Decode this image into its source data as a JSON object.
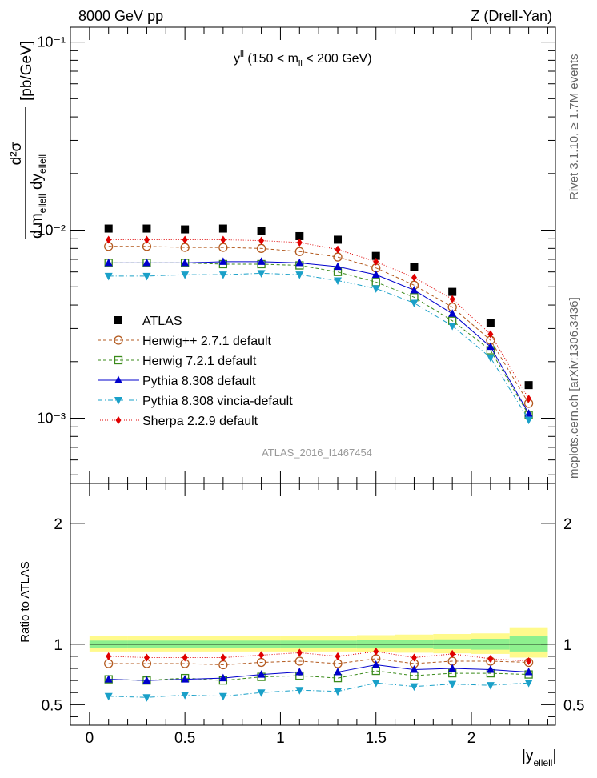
{
  "header": {
    "left": "8000 GeV pp",
    "right": "Z (Drell-Yan)"
  },
  "side_labels": {
    "rivet": "Rivet 3.1.10, ≥ 1.7M events",
    "mcplots": "mcplots.cern.ch [arXiv:1306.3436]"
  },
  "annotation": {
    "main": "y",
    "sup": "ll",
    "rest1": " (150 < m",
    "sub": "ll",
    "rest2": " < 200 GeV)"
  },
  "watermark": "ATLAS_2016_I1467454",
  "ylabel_main": {
    "num": "d²σ",
    "den_d": "d m",
    "den_sub1": "ellell",
    "den_dy": " dy",
    "den_sub2": "ellell",
    "unit": "[pb/GeV]"
  },
  "ylabel_ratio": "Ratio to ATLAS",
  "xlabel": {
    "main": "|y",
    "sub": "ellell",
    "close": "|"
  },
  "colors": {
    "atlas": "#000000",
    "herwigpp": "#b35a1f",
    "herwig7": "#3a8a1a",
    "pythia": "#0000cc",
    "vincia": "#1aa0c8",
    "sherpa": "#e00000",
    "band_inner": "#8ef08e",
    "band_outer": "#fffa8c"
  },
  "chart_data": [
    {
      "type": "scatter",
      "scale": "log",
      "x": [
        0.1,
        0.3,
        0.5,
        0.7,
        0.9,
        1.1,
        1.3,
        1.5,
        1.7,
        1.9,
        2.1,
        2.3
      ],
      "xlim": [
        -0.1,
        2.44
      ],
      "ylim": [
        0.00045,
        0.12
      ],
      "yticks": [
        "10⁻³",
        "10⁻²",
        "10⁻¹"
      ],
      "series": [
        {
          "name": "ATLAS",
          "key": "atlas",
          "values": [
            0.0102,
            0.0102,
            0.0101,
            0.0102,
            0.0099,
            0.0093,
            0.0089,
            0.0073,
            0.0064,
            0.0047,
            0.0032,
            0.0015
          ]
        },
        {
          "name": "Herwig++ 2.7.1 default",
          "key": "herwigpp",
          "values": [
            0.0082,
            0.0082,
            0.0081,
            0.0081,
            0.008,
            0.0077,
            0.0072,
            0.0063,
            0.0051,
            0.0039,
            0.0026,
            0.0012
          ]
        },
        {
          "name": "Herwig 7.2.1 default",
          "key": "herwig7",
          "values": [
            0.0067,
            0.0067,
            0.0067,
            0.0066,
            0.0066,
            0.0065,
            0.006,
            0.0053,
            0.0044,
            0.0033,
            0.0023,
            0.00104
          ]
        },
        {
          "name": "Pythia 8.308 default",
          "key": "pythia",
          "values": [
            0.0067,
            0.0067,
            0.0067,
            0.0068,
            0.0068,
            0.0067,
            0.0064,
            0.0058,
            0.0048,
            0.0036,
            0.0024,
            0.00106
          ]
        },
        {
          "name": "Pythia 8.308 vincia-default",
          "key": "vincia",
          "values": [
            0.0057,
            0.0057,
            0.0058,
            0.0058,
            0.0059,
            0.0058,
            0.0054,
            0.0049,
            0.0041,
            0.0031,
            0.0021,
            0.00098
          ]
        },
        {
          "name": "Sherpa 2.2.9 default",
          "key": "sherpa",
          "values": [
            0.0089,
            0.0089,
            0.0089,
            0.0089,
            0.0088,
            0.0086,
            0.0079,
            0.0068,
            0.0056,
            0.0043,
            0.0028,
            0.00127
          ]
        }
      ]
    },
    {
      "type": "scatter",
      "scale": "linear",
      "x": [
        0.1,
        0.3,
        0.5,
        0.7,
        0.9,
        1.1,
        1.3,
        1.5,
        1.7,
        1.9,
        2.1,
        2.3
      ],
      "xlim": [
        -0.1,
        2.44
      ],
      "ylim": [
        0.33,
        2.33
      ],
      "xticks": [
        "0",
        "0.5",
        "1",
        "1.5",
        "2"
      ],
      "yticks": [
        "0.5",
        "1",
        "2"
      ],
      "band_edges": [
        0.0,
        0.2,
        0.4,
        0.6,
        0.8,
        1.0,
        1.2,
        1.4,
        1.6,
        1.8,
        2.0,
        2.2,
        2.4
      ],
      "band_inner": [
        [
          0.97,
          1.03
        ],
        [
          0.97,
          1.03
        ],
        [
          0.97,
          1.03
        ],
        [
          0.97,
          1.03
        ],
        [
          0.97,
          1.03
        ],
        [
          0.97,
          1.03
        ],
        [
          0.97,
          1.03
        ],
        [
          0.965,
          1.035
        ],
        [
          0.965,
          1.035
        ],
        [
          0.96,
          1.04
        ],
        [
          0.955,
          1.045
        ],
        [
          0.94,
          1.07
        ]
      ],
      "band_outer": [
        [
          0.94,
          1.07
        ],
        [
          0.94,
          1.07
        ],
        [
          0.94,
          1.07
        ],
        [
          0.94,
          1.07
        ],
        [
          0.94,
          1.07
        ],
        [
          0.94,
          1.07
        ],
        [
          0.94,
          1.07
        ],
        [
          0.935,
          1.075
        ],
        [
          0.93,
          1.08
        ],
        [
          0.925,
          1.085
        ],
        [
          0.92,
          1.09
        ],
        [
          0.89,
          1.14
        ]
      ],
      "series": [
        {
          "name": "Herwig++ 2.7.1 default",
          "key": "herwigpp",
          "values": [
            0.84,
            0.84,
            0.84,
            0.83,
            0.85,
            0.86,
            0.84,
            0.88,
            0.84,
            0.86,
            0.86,
            0.85
          ]
        },
        {
          "name": "Herwig 7.2.1 default",
          "key": "herwig7",
          "values": [
            0.71,
            0.7,
            0.72,
            0.7,
            0.73,
            0.74,
            0.72,
            0.78,
            0.74,
            0.76,
            0.76,
            0.75
          ]
        },
        {
          "name": "Pythia 8.308 default",
          "key": "pythia",
          "values": [
            0.71,
            0.7,
            0.71,
            0.72,
            0.75,
            0.77,
            0.77,
            0.83,
            0.79,
            0.8,
            0.79,
            0.77
          ]
        },
        {
          "name": "Pythia 8.308 vincia-default",
          "key": "vincia",
          "values": [
            0.57,
            0.56,
            0.58,
            0.57,
            0.6,
            0.62,
            0.61,
            0.68,
            0.65,
            0.67,
            0.66,
            0.68
          ]
        },
        {
          "name": "Sherpa 2.2.9 default",
          "key": "sherpa",
          "values": [
            0.9,
            0.89,
            0.89,
            0.89,
            0.91,
            0.93,
            0.9,
            0.94,
            0.89,
            0.92,
            0.88,
            0.86
          ]
        }
      ]
    }
  ]
}
